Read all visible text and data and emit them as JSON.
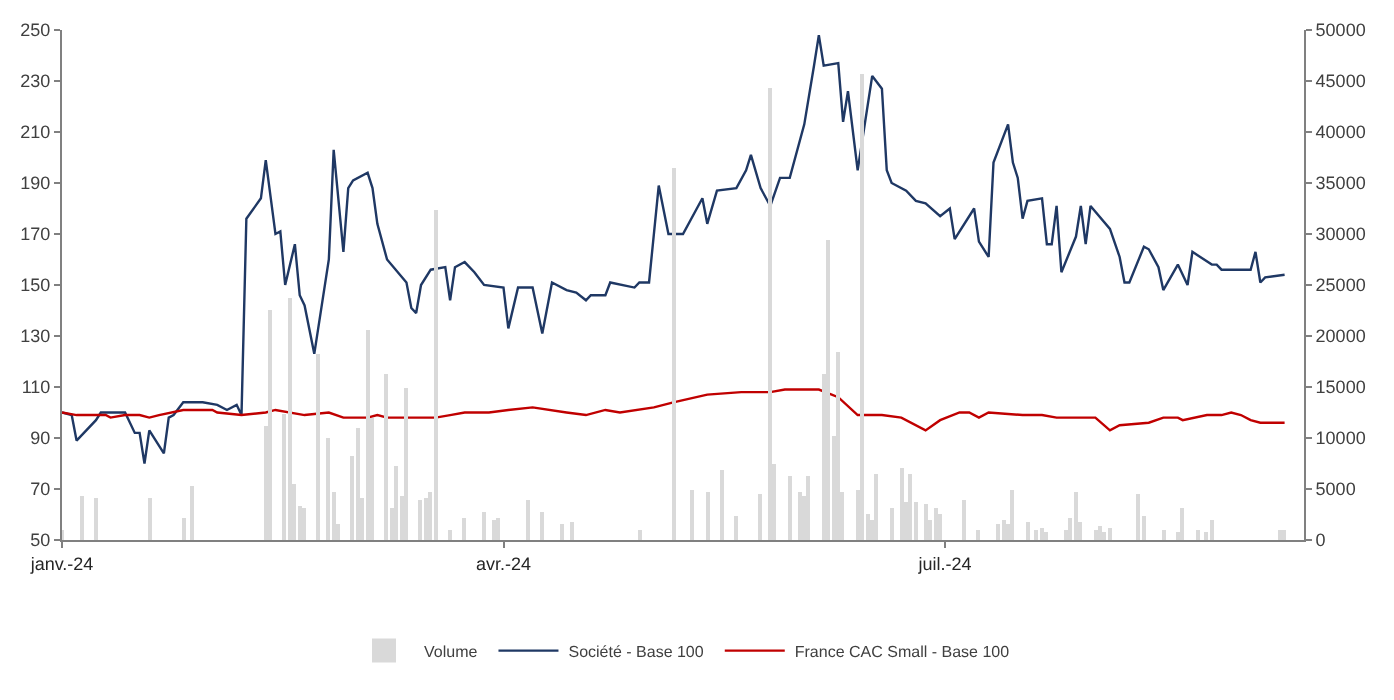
{
  "chart_data": {
    "type": "line",
    "xlim": [
      "2024-01-01",
      "2024-09-13"
    ],
    "xticks": [
      {
        "value": "2024-01-01",
        "label": "janv.-24"
      },
      {
        "value": "2024-04-01",
        "label": "avr.-24"
      },
      {
        "value": "2024-07-01",
        "label": "juil.-24"
      }
    ],
    "ylim": [
      50,
      250
    ],
    "yticks": [
      50,
      70,
      90,
      110,
      130,
      150,
      170,
      190,
      210,
      230,
      250
    ],
    "y2lim": [
      0,
      50000
    ],
    "y2ticks": [
      0,
      5000,
      10000,
      15000,
      20000,
      25000,
      30000,
      35000,
      40000,
      45000,
      50000
    ],
    "legend": "bottom",
    "series": [
      {
        "name": "Volume",
        "type": "bar",
        "axis": "y2",
        "color": "#d9d9d9",
        "x": [
          "2024-01-01",
          "2024-01-05",
          "2024-01-08",
          "2024-01-19",
          "2024-01-26",
          "2024-01-28",
          "2024-02-12",
          "2024-02-13",
          "2024-02-16",
          "2024-02-17",
          "2024-02-18",
          "2024-02-19",
          "2024-02-20",
          "2024-02-23",
          "2024-02-25",
          "2024-02-26",
          "2024-02-27",
          "2024-03-01",
          "2024-03-02",
          "2024-03-03",
          "2024-03-04",
          "2024-03-05",
          "2024-03-08",
          "2024-03-09",
          "2024-03-10",
          "2024-03-11",
          "2024-03-12",
          "2024-03-15",
          "2024-03-16",
          "2024-03-17",
          "2024-03-18",
          "2024-03-21",
          "2024-03-24",
          "2024-03-28",
          "2024-03-30",
          "2024-03-31",
          "2024-04-06",
          "2024-04-09",
          "2024-04-13",
          "2024-04-15",
          "2024-04-29",
          "2024-05-06",
          "2024-05-10",
          "2024-05-13",
          "2024-05-16",
          "2024-05-19",
          "2024-05-24",
          "2024-05-26",
          "2024-05-27",
          "2024-05-30",
          "2024-06-01",
          "2024-06-02",
          "2024-06-03",
          "2024-06-06",
          "2024-06-07",
          "2024-06-08",
          "2024-06-09",
          "2024-06-10",
          "2024-06-13",
          "2024-06-14",
          "2024-06-15",
          "2024-06-16",
          "2024-06-17",
          "2024-06-20",
          "2024-06-22",
          "2024-06-23",
          "2024-06-24",
          "2024-06-25",
          "2024-06-27",
          "2024-06-28",
          "2024-06-29",
          "2024-06-30",
          "2024-07-05",
          "2024-07-08",
          "2024-07-12",
          "2024-07-13",
          "2024-07-14",
          "2024-07-15",
          "2024-07-18",
          "2024-07-20",
          "2024-07-21",
          "2024-07-22",
          "2024-07-26",
          "2024-07-27",
          "2024-07-28",
          "2024-07-29",
          "2024-08-01",
          "2024-08-02",
          "2024-08-03",
          "2024-08-04",
          "2024-08-10",
          "2024-08-11",
          "2024-08-15",
          "2024-08-18",
          "2024-08-19",
          "2024-08-22",
          "2024-08-24",
          "2024-08-25",
          "2024-09-08",
          "2024-09-09"
        ],
        "values": [
          900,
          4300,
          4100,
          4100,
          2100,
          5200,
          11100,
          22600,
          12400,
          23800,
          5400,
          3400,
          3200,
          18300,
          10000,
          4800,
          1500,
          8200,
          11000,
          4100,
          20600,
          11900,
          16300,
          3200,
          7300,
          4300,
          14900,
          4000,
          4100,
          4700,
          32400,
          1000,
          2100,
          2800,
          2000,
          2100,
          3900,
          2700,
          1500,
          1800,
          1000,
          36500,
          5000,
          4800,
          6900,
          2300,
          4500,
          44300,
          7500,
          6200,
          4800,
          4300,
          6200,
          16200,
          29400,
          10200,
          18500,
          4800,
          5000,
          45700,
          2600,
          2000,
          6400,
          3100,
          7000,
          3700,
          6500,
          3800,
          3600,
          2000,
          3100,
          2600,
          3900,
          1000,
          1500,
          2000,
          1500,
          5000,
          1800,
          1000,
          1200,
          700,
          1000,
          2100,
          4700,
          1800,
          900,
          1300,
          700,
          1200,
          4600,
          2400,
          900,
          700,
          3200,
          1000,
          700,
          2000,
          900,
          900
        ]
      },
      {
        "name": "Société - Base 100",
        "color": "#1f3864",
        "x": [
          "2024-01-01",
          "2024-01-03",
          "2024-01-04",
          "2024-01-08",
          "2024-01-09",
          "2024-01-10",
          "2024-01-11",
          "2024-01-14",
          "2024-01-16",
          "2024-01-17",
          "2024-01-18",
          "2024-01-19",
          "2024-01-22",
          "2024-01-23",
          "2024-01-24",
          "2024-01-26",
          "2024-01-30",
          "2024-02-02",
          "2024-02-04",
          "2024-02-06",
          "2024-02-07",
          "2024-02-08",
          "2024-02-11",
          "2024-02-12",
          "2024-02-14",
          "2024-02-15",
          "2024-02-16",
          "2024-02-18",
          "2024-02-19",
          "2024-02-20",
          "2024-02-22",
          "2024-02-25",
          "2024-02-26",
          "2024-02-28",
          "2024-02-29",
          "2024-03-01",
          "2024-03-04",
          "2024-03-05",
          "2024-03-06",
          "2024-03-08",
          "2024-03-12",
          "2024-03-13",
          "2024-03-14",
          "2024-03-15",
          "2024-03-17",
          "2024-03-20",
          "2024-03-21",
          "2024-03-22",
          "2024-03-24",
          "2024-03-26",
          "2024-03-28",
          "2024-04-01",
          "2024-04-02",
          "2024-04-04",
          "2024-04-07",
          "2024-04-09",
          "2024-04-11",
          "2024-04-14",
          "2024-04-16",
          "2024-04-18",
          "2024-04-19",
          "2024-04-22",
          "2024-04-23",
          "2024-04-28",
          "2024-04-29",
          "2024-05-01",
          "2024-05-03",
          "2024-05-05",
          "2024-05-08",
          "2024-05-12",
          "2024-05-13",
          "2024-05-15",
          "2024-05-19",
          "2024-05-21",
          "2024-05-22",
          "2024-05-24",
          "2024-05-26",
          "2024-05-28",
          "2024-05-30",
          "2024-06-02",
          "2024-06-04",
          "2024-06-05",
          "2024-06-06",
          "2024-06-09",
          "2024-06-10",
          "2024-06-11",
          "2024-06-13",
          "2024-06-16",
          "2024-06-18",
          "2024-06-19",
          "2024-06-20",
          "2024-06-23",
          "2024-06-25",
          "2024-06-27",
          "2024-06-30",
          "2024-07-02",
          "2024-07-03",
          "2024-07-07",
          "2024-07-08",
          "2024-07-10",
          "2024-07-11",
          "2024-07-14",
          "2024-07-15",
          "2024-07-16",
          "2024-07-17",
          "2024-07-18",
          "2024-07-21",
          "2024-07-22",
          "2024-07-23",
          "2024-07-24",
          "2024-07-25",
          "2024-07-28",
          "2024-07-29",
          "2024-07-30",
          "2024-07-31",
          "2024-08-04",
          "2024-08-06",
          "2024-08-07",
          "2024-08-08",
          "2024-08-11",
          "2024-08-12",
          "2024-08-14",
          "2024-08-15",
          "2024-08-18",
          "2024-08-20",
          "2024-08-21",
          "2024-08-25",
          "2024-08-26",
          "2024-08-27",
          "2024-09-02",
          "2024-09-03",
          "2024-09-04",
          "2024-09-05",
          "2024-09-09"
        ],
        "values": [
          100,
          99,
          89,
          97,
          100,
          100,
          100,
          100,
          92,
          92,
          80,
          93,
          84,
          98,
          99,
          104,
          104,
          103,
          101,
          103,
          99,
          176,
          184,
          199,
          170,
          171,
          150,
          166,
          146,
          142,
          123,
          160,
          203,
          163,
          188,
          191,
          194,
          188,
          174,
          160,
          151,
          141,
          139,
          150,
          156,
          157,
          144,
          157,
          159,
          155,
          150,
          149,
          133,
          149,
          149,
          131,
          151,
          148,
          147,
          144,
          146,
          146,
          151,
          149,
          151,
          151,
          189,
          170,
          170,
          184,
          174,
          187,
          188,
          195,
          201,
          188,
          181,
          192,
          192,
          213,
          236,
          248,
          236,
          237,
          214,
          226,
          195,
          232,
          227,
          195,
          190,
          187,
          183,
          182,
          177,
          180,
          168,
          180,
          167,
          161,
          198,
          213,
          198,
          192,
          176,
          183,
          184,
          166,
          166,
          181,
          155,
          169,
          181,
          166,
          181,
          172,
          161,
          151,
          151,
          165,
          164,
          157,
          148,
          158,
          150,
          163,
          158,
          158,
          156,
          156,
          163,
          151,
          153,
          154
        ]
      },
      {
        "name": "France CAC Small - Base 100",
        "color": "#c00000",
        "x": [
          "2024-01-01",
          "2024-01-04",
          "2024-01-10",
          "2024-01-11",
          "2024-01-14",
          "2024-01-17",
          "2024-01-19",
          "2024-01-21",
          "2024-01-26",
          "2024-02-01",
          "2024-02-02",
          "2024-02-07",
          "2024-02-12",
          "2024-02-14",
          "2024-02-20",
          "2024-02-25",
          "2024-02-28",
          "2024-03-04",
          "2024-03-06",
          "2024-03-08",
          "2024-03-18",
          "2024-03-21",
          "2024-03-24",
          "2024-03-29",
          "2024-04-02",
          "2024-04-07",
          "2024-04-14",
          "2024-04-18",
          "2024-04-22",
          "2024-04-25",
          "2024-05-02",
          "2024-05-06",
          "2024-05-13",
          "2024-05-20",
          "2024-05-26",
          "2024-05-29",
          "2024-06-05",
          "2024-06-09",
          "2024-06-13",
          "2024-06-18",
          "2024-06-22",
          "2024-06-27",
          "2024-06-30",
          "2024-07-04",
          "2024-07-06",
          "2024-07-08",
          "2024-07-10",
          "2024-07-17",
          "2024-07-21",
          "2024-07-24",
          "2024-07-27",
          "2024-08-01",
          "2024-08-04",
          "2024-08-06",
          "2024-08-12",
          "2024-08-15",
          "2024-08-18",
          "2024-08-19",
          "2024-08-24",
          "2024-08-27",
          "2024-08-29",
          "2024-08-31",
          "2024-09-02",
          "2024-09-04",
          "2024-09-09"
        ],
        "values": [
          100,
          99,
          99,
          98,
          99,
          99,
          98,
          99,
          101,
          101,
          100,
          99,
          100,
          101,
          99,
          100,
          98,
          98,
          99,
          98,
          98,
          99,
          100,
          100,
          101,
          102,
          100,
          99,
          101,
          100,
          102,
          104,
          107,
          108,
          108,
          109,
          109,
          106,
          99,
          99,
          98,
          93,
          97,
          100,
          100,
          98,
          100,
          99,
          99,
          98,
          98,
          98,
          93,
          95,
          96,
          98,
          98,
          97,
          99,
          99,
          100,
          99,
          97,
          96,
          96
        ]
      }
    ]
  }
}
